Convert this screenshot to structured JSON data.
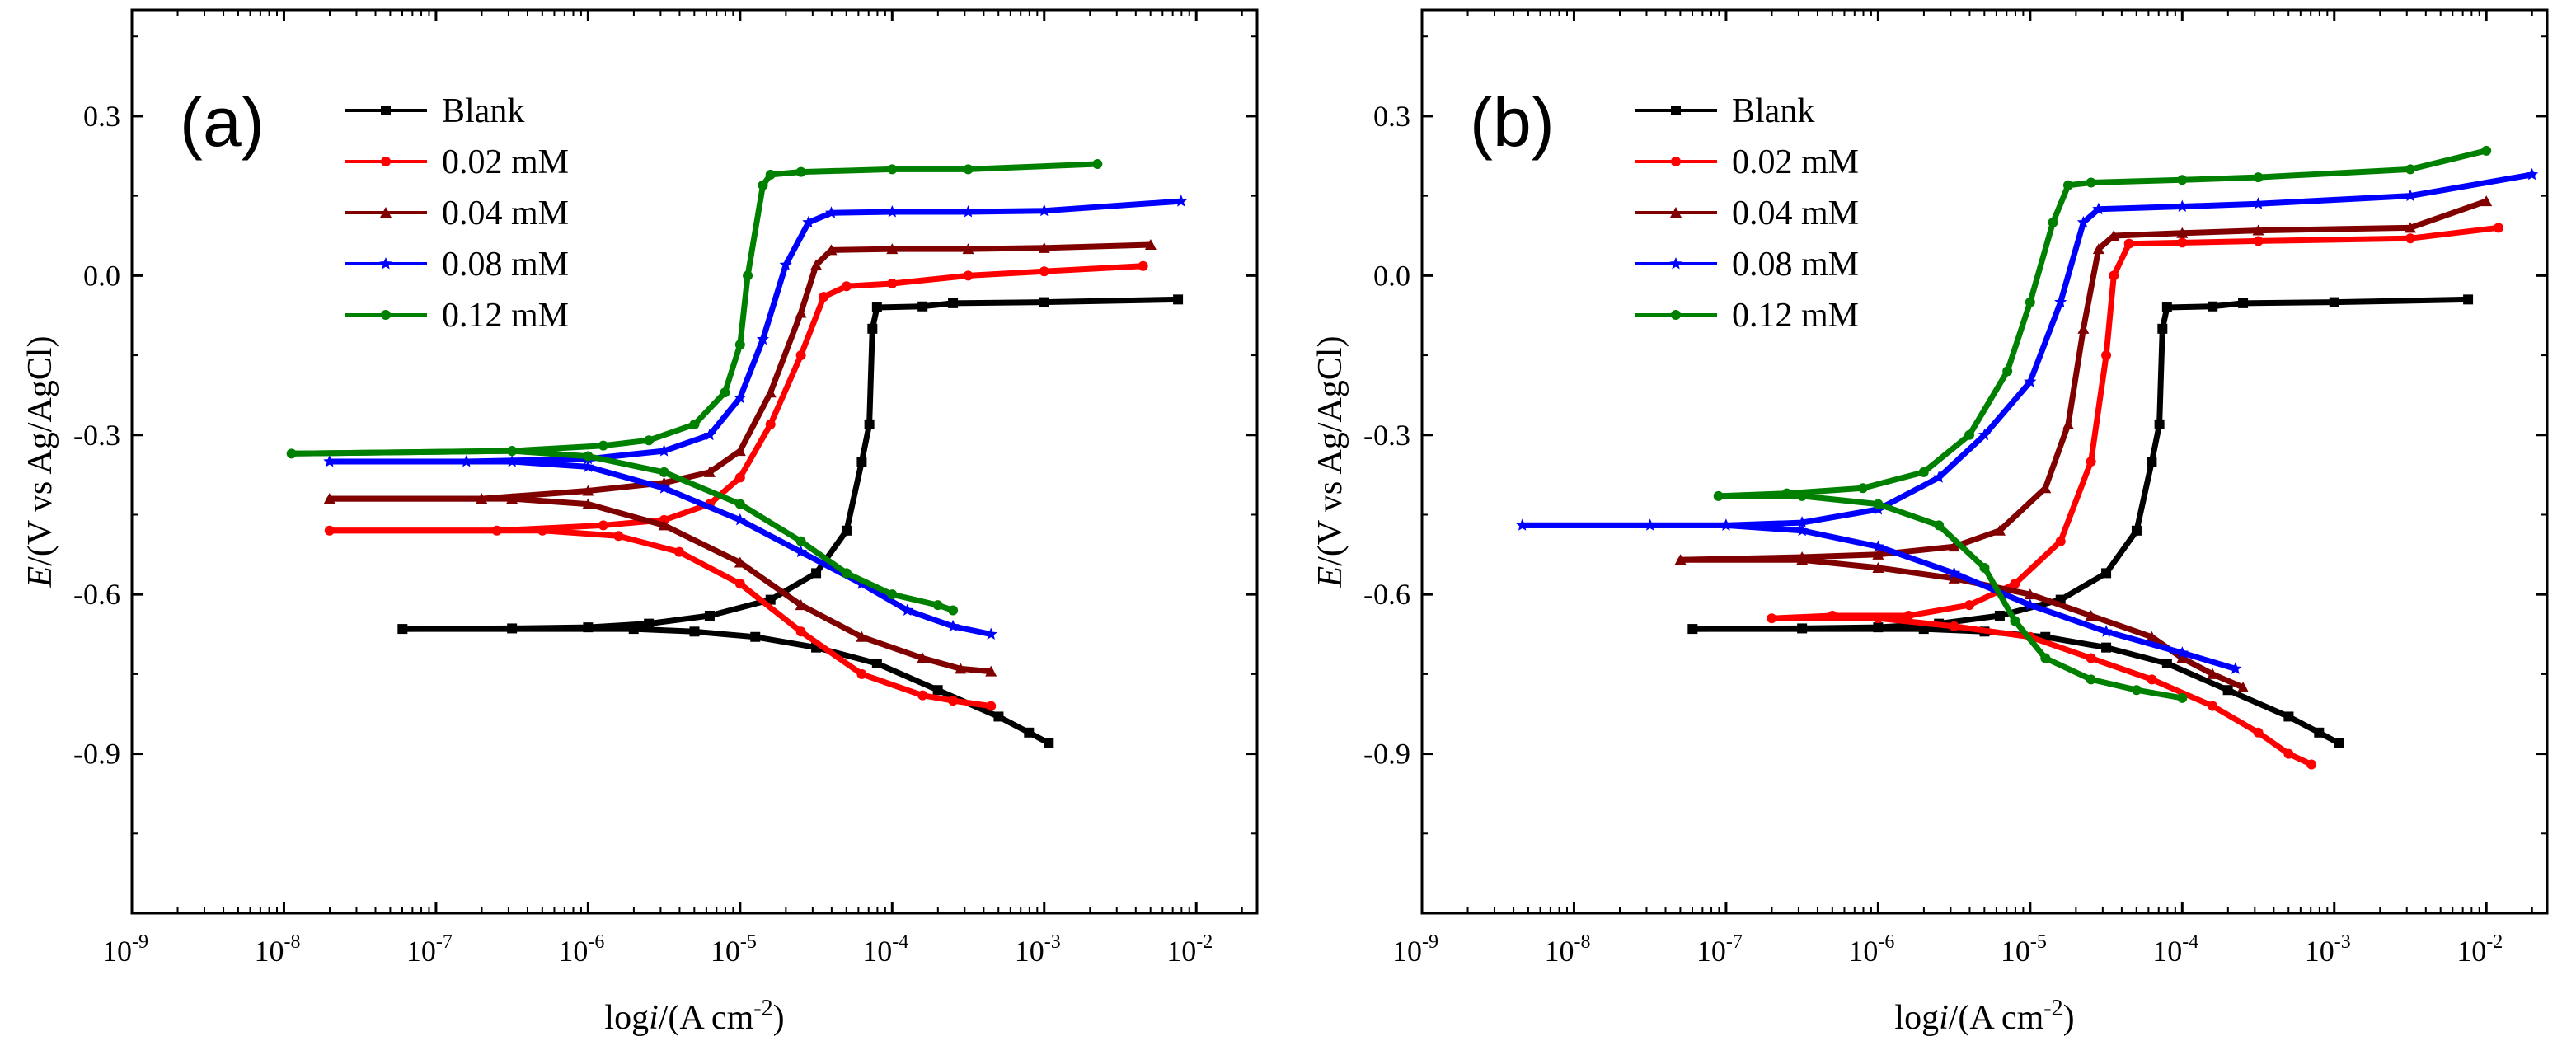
{
  "figure": {
    "ylabel": "E/(V vs Ag/AgCl)",
    "xlabel": "logi/(A cm-2)"
  },
  "chart_data": [
    {
      "panel": "(a)",
      "type": "line",
      "title": "(a)",
      "xscale": "log",
      "xlim_log10": [
        -9,
        -1.6
      ],
      "ylim": [
        -1.2,
        0.5
      ],
      "yticks": [
        "0.3",
        "0.0",
        "-0.3",
        "-0.6",
        "-0.9"
      ],
      "xticks": [
        {
          "base": "10",
          "exp": "-9"
        },
        {
          "base": "10",
          "exp": "-8"
        },
        {
          "base": "10",
          "exp": "-7"
        },
        {
          "base": "10",
          "exp": "-6"
        },
        {
          "base": "10",
          "exp": "-5"
        },
        {
          "base": "10",
          "exp": "-4"
        },
        {
          "base": "10",
          "exp": "-3"
        },
        {
          "base": "10",
          "exp": "-2"
        }
      ],
      "xlabel": "logi/(A cm-2)",
      "ylabel": "E/(V vs Ag/AgCl)",
      "legend_position": "top-left",
      "series": [
        {
          "name": "Blank",
          "color": "#000000",
          "marker": "square",
          "points": [
            [
              -7.22,
              -0.665
            ],
            [
              -6.5,
              -0.664
            ],
            [
              -6.0,
              -0.662
            ],
            [
              -5.6,
              -0.655
            ],
            [
              -5.2,
              -0.64
            ],
            [
              -4.8,
              -0.61
            ],
            [
              -4.5,
              -0.56
            ],
            [
              -4.3,
              -0.48
            ],
            [
              -4.2,
              -0.35
            ],
            [
              -4.15,
              -0.28
            ],
            [
              -4.13,
              -0.1
            ],
            [
              -4.1,
              -0.06
            ],
            [
              -3.8,
              -0.058
            ],
            [
              -3.6,
              -0.052
            ],
            [
              -3.0,
              -0.05
            ],
            [
              -2.12,
              -0.045
            ],
            [
              -5.7,
              -0.665
            ],
            [
              -5.3,
              -0.67
            ],
            [
              -4.9,
              -0.68
            ],
            [
              -4.5,
              -0.7
            ],
            [
              -4.1,
              -0.73
            ],
            [
              -3.7,
              -0.78
            ],
            [
              -3.3,
              -0.83
            ],
            [
              -3.1,
              -0.86
            ],
            [
              -2.97,
              -0.88
            ]
          ]
        },
        {
          "name": "0.02 mM",
          "color": "#ff0000",
          "marker": "circle",
          "points": [
            [
              -7.7,
              -0.48
            ],
            [
              -6.6,
              -0.48
            ],
            [
              -5.9,
              -0.47
            ],
            [
              -5.5,
              -0.46
            ],
            [
              -5.2,
              -0.43
            ],
            [
              -5.0,
              -0.38
            ],
            [
              -4.8,
              -0.28
            ],
            [
              -4.6,
              -0.15
            ],
            [
              -4.45,
              -0.04
            ],
            [
              -4.3,
              -0.02
            ],
            [
              -4.0,
              -0.015
            ],
            [
              -3.5,
              0.0
            ],
            [
              -3.0,
              0.008
            ],
            [
              -2.35,
              0.018
            ],
            [
              -6.3,
              -0.48
            ],
            [
              -5.8,
              -0.49
            ],
            [
              -5.4,
              -0.52
            ],
            [
              -5.0,
              -0.58
            ],
            [
              -4.6,
              -0.67
            ],
            [
              -4.2,
              -0.75
            ],
            [
              -3.8,
              -0.79
            ],
            [
              -3.6,
              -0.8
            ],
            [
              -3.35,
              -0.81
            ]
          ]
        },
        {
          "name": "0.04 mM",
          "color": "#800000",
          "marker": "triangle",
          "points": [
            [
              -7.7,
              -0.42
            ],
            [
              -6.7,
              -0.42
            ],
            [
              -6.0,
              -0.405
            ],
            [
              -5.5,
              -0.39
            ],
            [
              -5.2,
              -0.37
            ],
            [
              -5.0,
              -0.33
            ],
            [
              -4.8,
              -0.22
            ],
            [
              -4.6,
              -0.07
            ],
            [
              -4.5,
              0.02
            ],
            [
              -4.4,
              0.048
            ],
            [
              -4.0,
              0.05
            ],
            [
              -3.5,
              0.05
            ],
            [
              -3.0,
              0.052
            ],
            [
              -2.3,
              0.058
            ],
            [
              -6.5,
              -0.42
            ],
            [
              -6.0,
              -0.43
            ],
            [
              -5.5,
              -0.47
            ],
            [
              -5.0,
              -0.54
            ],
            [
              -4.6,
              -0.62
            ],
            [
              -4.2,
              -0.68
            ],
            [
              -3.8,
              -0.72
            ],
            [
              -3.55,
              -0.74
            ],
            [
              -3.35,
              -0.745
            ]
          ]
        },
        {
          "name": "0.08 mM",
          "color": "#0000ff",
          "marker": "star",
          "points": [
            [
              -7.7,
              -0.35
            ],
            [
              -6.8,
              -0.35
            ],
            [
              -6.0,
              -0.345
            ],
            [
              -5.5,
              -0.33
            ],
            [
              -5.2,
              -0.3
            ],
            [
              -5.0,
              -0.23
            ],
            [
              -4.85,
              -0.12
            ],
            [
              -4.7,
              0.02
            ],
            [
              -4.55,
              0.1
            ],
            [
              -4.4,
              0.118
            ],
            [
              -4.0,
              0.12
            ],
            [
              -3.5,
              0.12
            ],
            [
              -3.0,
              0.122
            ],
            [
              -2.1,
              0.14
            ],
            [
              -6.5,
              -0.35
            ],
            [
              -6.0,
              -0.36
            ],
            [
              -5.5,
              -0.4
            ],
            [
              -5.0,
              -0.46
            ],
            [
              -4.6,
              -0.52
            ],
            [
              -4.2,
              -0.58
            ],
            [
              -3.9,
              -0.63
            ],
            [
              -3.6,
              -0.66
            ],
            [
              -3.35,
              -0.675
            ]
          ]
        },
        {
          "name": "0.12 mM",
          "color": "#008000",
          "marker": "circle",
          "points": [
            [
              -7.95,
              -0.335
            ],
            [
              -6.5,
              -0.33
            ],
            [
              -5.9,
              -0.32
            ],
            [
              -5.6,
              -0.31
            ],
            [
              -5.3,
              -0.28
            ],
            [
              -5.1,
              -0.22
            ],
            [
              -5.0,
              -0.13
            ],
            [
              -4.95,
              0.0
            ],
            [
              -4.85,
              0.17
            ],
            [
              -4.8,
              0.19
            ],
            [
              -4.6,
              0.195
            ],
            [
              -4.0,
              0.2
            ],
            [
              -3.5,
              0.2
            ],
            [
              -2.65,
              0.21
            ],
            [
              -6.5,
              -0.33
            ],
            [
              -6.0,
              -0.34
            ],
            [
              -5.5,
              -0.37
            ],
            [
              -5.0,
              -0.43
            ],
            [
              -4.6,
              -0.5
            ],
            [
              -4.3,
              -0.56
            ],
            [
              -4.0,
              -0.6
            ],
            [
              -3.7,
              -0.62
            ],
            [
              -3.6,
              -0.63
            ]
          ]
        }
      ]
    },
    {
      "panel": "(b)",
      "type": "line",
      "title": "(b)",
      "xscale": "log",
      "xlim_log10": [
        -9,
        -1.6
      ],
      "ylim": [
        -1.2,
        0.5
      ],
      "yticks": [
        "0.3",
        "0.0",
        "-0.3",
        "-0.6",
        "-0.9"
      ],
      "xticks": [
        {
          "base": "10",
          "exp": "-9"
        },
        {
          "base": "10",
          "exp": "-8"
        },
        {
          "base": "10",
          "exp": "-7"
        },
        {
          "base": "10",
          "exp": "-6"
        },
        {
          "base": "10",
          "exp": "-5"
        },
        {
          "base": "10",
          "exp": "-4"
        },
        {
          "base": "10",
          "exp": "-3"
        },
        {
          "base": "10",
          "exp": "-2"
        }
      ],
      "xlabel": "logi/(A cm-2)",
      "ylabel": "E/(V vs Ag/AgCl)",
      "legend_position": "top-left",
      "series": [
        {
          "name": "Blank",
          "color": "#000000",
          "marker": "square",
          "points": [
            [
              -7.22,
              -0.665
            ],
            [
              -6.5,
              -0.664
            ],
            [
              -6.0,
              -0.662
            ],
            [
              -5.6,
              -0.655
            ],
            [
              -5.2,
              -0.64
            ],
            [
              -4.8,
              -0.61
            ],
            [
              -4.5,
              -0.56
            ],
            [
              -4.3,
              -0.48
            ],
            [
              -4.2,
              -0.35
            ],
            [
              -4.15,
              -0.28
            ],
            [
              -4.13,
              -0.1
            ],
            [
              -4.1,
              -0.06
            ],
            [
              -3.8,
              -0.058
            ],
            [
              -3.6,
              -0.052
            ],
            [
              -3.0,
              -0.05
            ],
            [
              -2.12,
              -0.045
            ],
            [
              -5.7,
              -0.665
            ],
            [
              -5.3,
              -0.67
            ],
            [
              -4.9,
              -0.68
            ],
            [
              -4.5,
              -0.7
            ],
            [
              -4.1,
              -0.73
            ],
            [
              -3.7,
              -0.78
            ],
            [
              -3.3,
              -0.83
            ],
            [
              -3.1,
              -0.86
            ],
            [
              -2.97,
              -0.88
            ]
          ]
        },
        {
          "name": "0.02 mM",
          "color": "#ff0000",
          "marker": "circle",
          "points": [
            [
              -6.7,
              -0.645
            ],
            [
              -6.3,
              -0.64
            ],
            [
              -5.8,
              -0.64
            ],
            [
              -5.4,
              -0.62
            ],
            [
              -5.1,
              -0.58
            ],
            [
              -4.8,
              -0.5
            ],
            [
              -4.6,
              -0.35
            ],
            [
              -4.5,
              -0.15
            ],
            [
              -4.45,
              0.0
            ],
            [
              -4.35,
              0.06
            ],
            [
              -4.0,
              0.062
            ],
            [
              -3.5,
              0.065
            ],
            [
              -2.5,
              0.07
            ],
            [
              -1.92,
              0.09
            ],
            [
              -6.0,
              -0.645
            ],
            [
              -5.5,
              -0.66
            ],
            [
              -5.0,
              -0.68
            ],
            [
              -4.6,
              -0.72
            ],
            [
              -4.2,
              -0.76
            ],
            [
              -3.8,
              -0.81
            ],
            [
              -3.5,
              -0.86
            ],
            [
              -3.3,
              -0.9
            ],
            [
              -3.15,
              -0.92
            ]
          ]
        },
        {
          "name": "0.04 mM",
          "color": "#800000",
          "marker": "triangle",
          "points": [
            [
              -7.3,
              -0.535
            ],
            [
              -6.5,
              -0.53
            ],
            [
              -6.0,
              -0.525
            ],
            [
              -5.5,
              -0.51
            ],
            [
              -5.2,
              -0.48
            ],
            [
              -4.9,
              -0.4
            ],
            [
              -4.75,
              -0.28
            ],
            [
              -4.65,
              -0.1
            ],
            [
              -4.55,
              0.05
            ],
            [
              -4.45,
              0.075
            ],
            [
              -4.0,
              0.08
            ],
            [
              -3.5,
              0.085
            ],
            [
              -2.5,
              0.09
            ],
            [
              -2.0,
              0.14
            ],
            [
              -6.5,
              -0.535
            ],
            [
              -6.0,
              -0.55
            ],
            [
              -5.5,
              -0.57
            ],
            [
              -5.0,
              -0.6
            ],
            [
              -4.6,
              -0.64
            ],
            [
              -4.2,
              -0.68
            ],
            [
              -4.0,
              -0.72
            ],
            [
              -3.8,
              -0.75
            ],
            [
              -3.6,
              -0.775
            ]
          ]
        },
        {
          "name": "0.08 mM",
          "color": "#0000ff",
          "marker": "star",
          "points": [
            [
              -8.34,
              -0.47
            ],
            [
              -7.0,
              -0.47
            ],
            [
              -6.5,
              -0.465
            ],
            [
              -6.0,
              -0.44
            ],
            [
              -5.6,
              -0.38
            ],
            [
              -5.3,
              -0.3
            ],
            [
              -5.0,
              -0.2
            ],
            [
              -4.8,
              -0.05
            ],
            [
              -4.65,
              0.1
            ],
            [
              -4.55,
              0.125
            ],
            [
              -4.0,
              0.13
            ],
            [
              -3.5,
              0.135
            ],
            [
              -2.5,
              0.15
            ],
            [
              -1.7,
              0.19
            ],
            [
              -7.5,
              -0.47
            ],
            [
              -7.0,
              -0.47
            ],
            [
              -6.5,
              -0.48
            ],
            [
              -6.0,
              -0.51
            ],
            [
              -5.5,
              -0.56
            ],
            [
              -5.0,
              -0.62
            ],
            [
              -4.5,
              -0.67
            ],
            [
              -4.0,
              -0.71
            ],
            [
              -3.65,
              -0.74
            ]
          ]
        },
        {
          "name": "0.12 mM",
          "color": "#008000",
          "marker": "circle",
          "points": [
            [
              -7.05,
              -0.415
            ],
            [
              -6.6,
              -0.41
            ],
            [
              -6.1,
              -0.4
            ],
            [
              -5.7,
              -0.37
            ],
            [
              -5.4,
              -0.3
            ],
            [
              -5.15,
              -0.18
            ],
            [
              -5.0,
              -0.05
            ],
            [
              -4.85,
              0.1
            ],
            [
              -4.75,
              0.17
            ],
            [
              -4.6,
              0.175
            ],
            [
              -4.0,
              0.18
            ],
            [
              -3.5,
              0.185
            ],
            [
              -2.5,
              0.2
            ],
            [
              -2.0,
              0.235
            ],
            [
              -6.5,
              -0.415
            ],
            [
              -6.0,
              -0.43
            ],
            [
              -5.6,
              -0.47
            ],
            [
              -5.3,
              -0.55
            ],
            [
              -5.1,
              -0.65
            ],
            [
              -4.9,
              -0.72
            ],
            [
              -4.6,
              -0.76
            ],
            [
              -4.3,
              -0.78
            ],
            [
              -4.0,
              -0.795
            ]
          ]
        }
      ]
    }
  ]
}
